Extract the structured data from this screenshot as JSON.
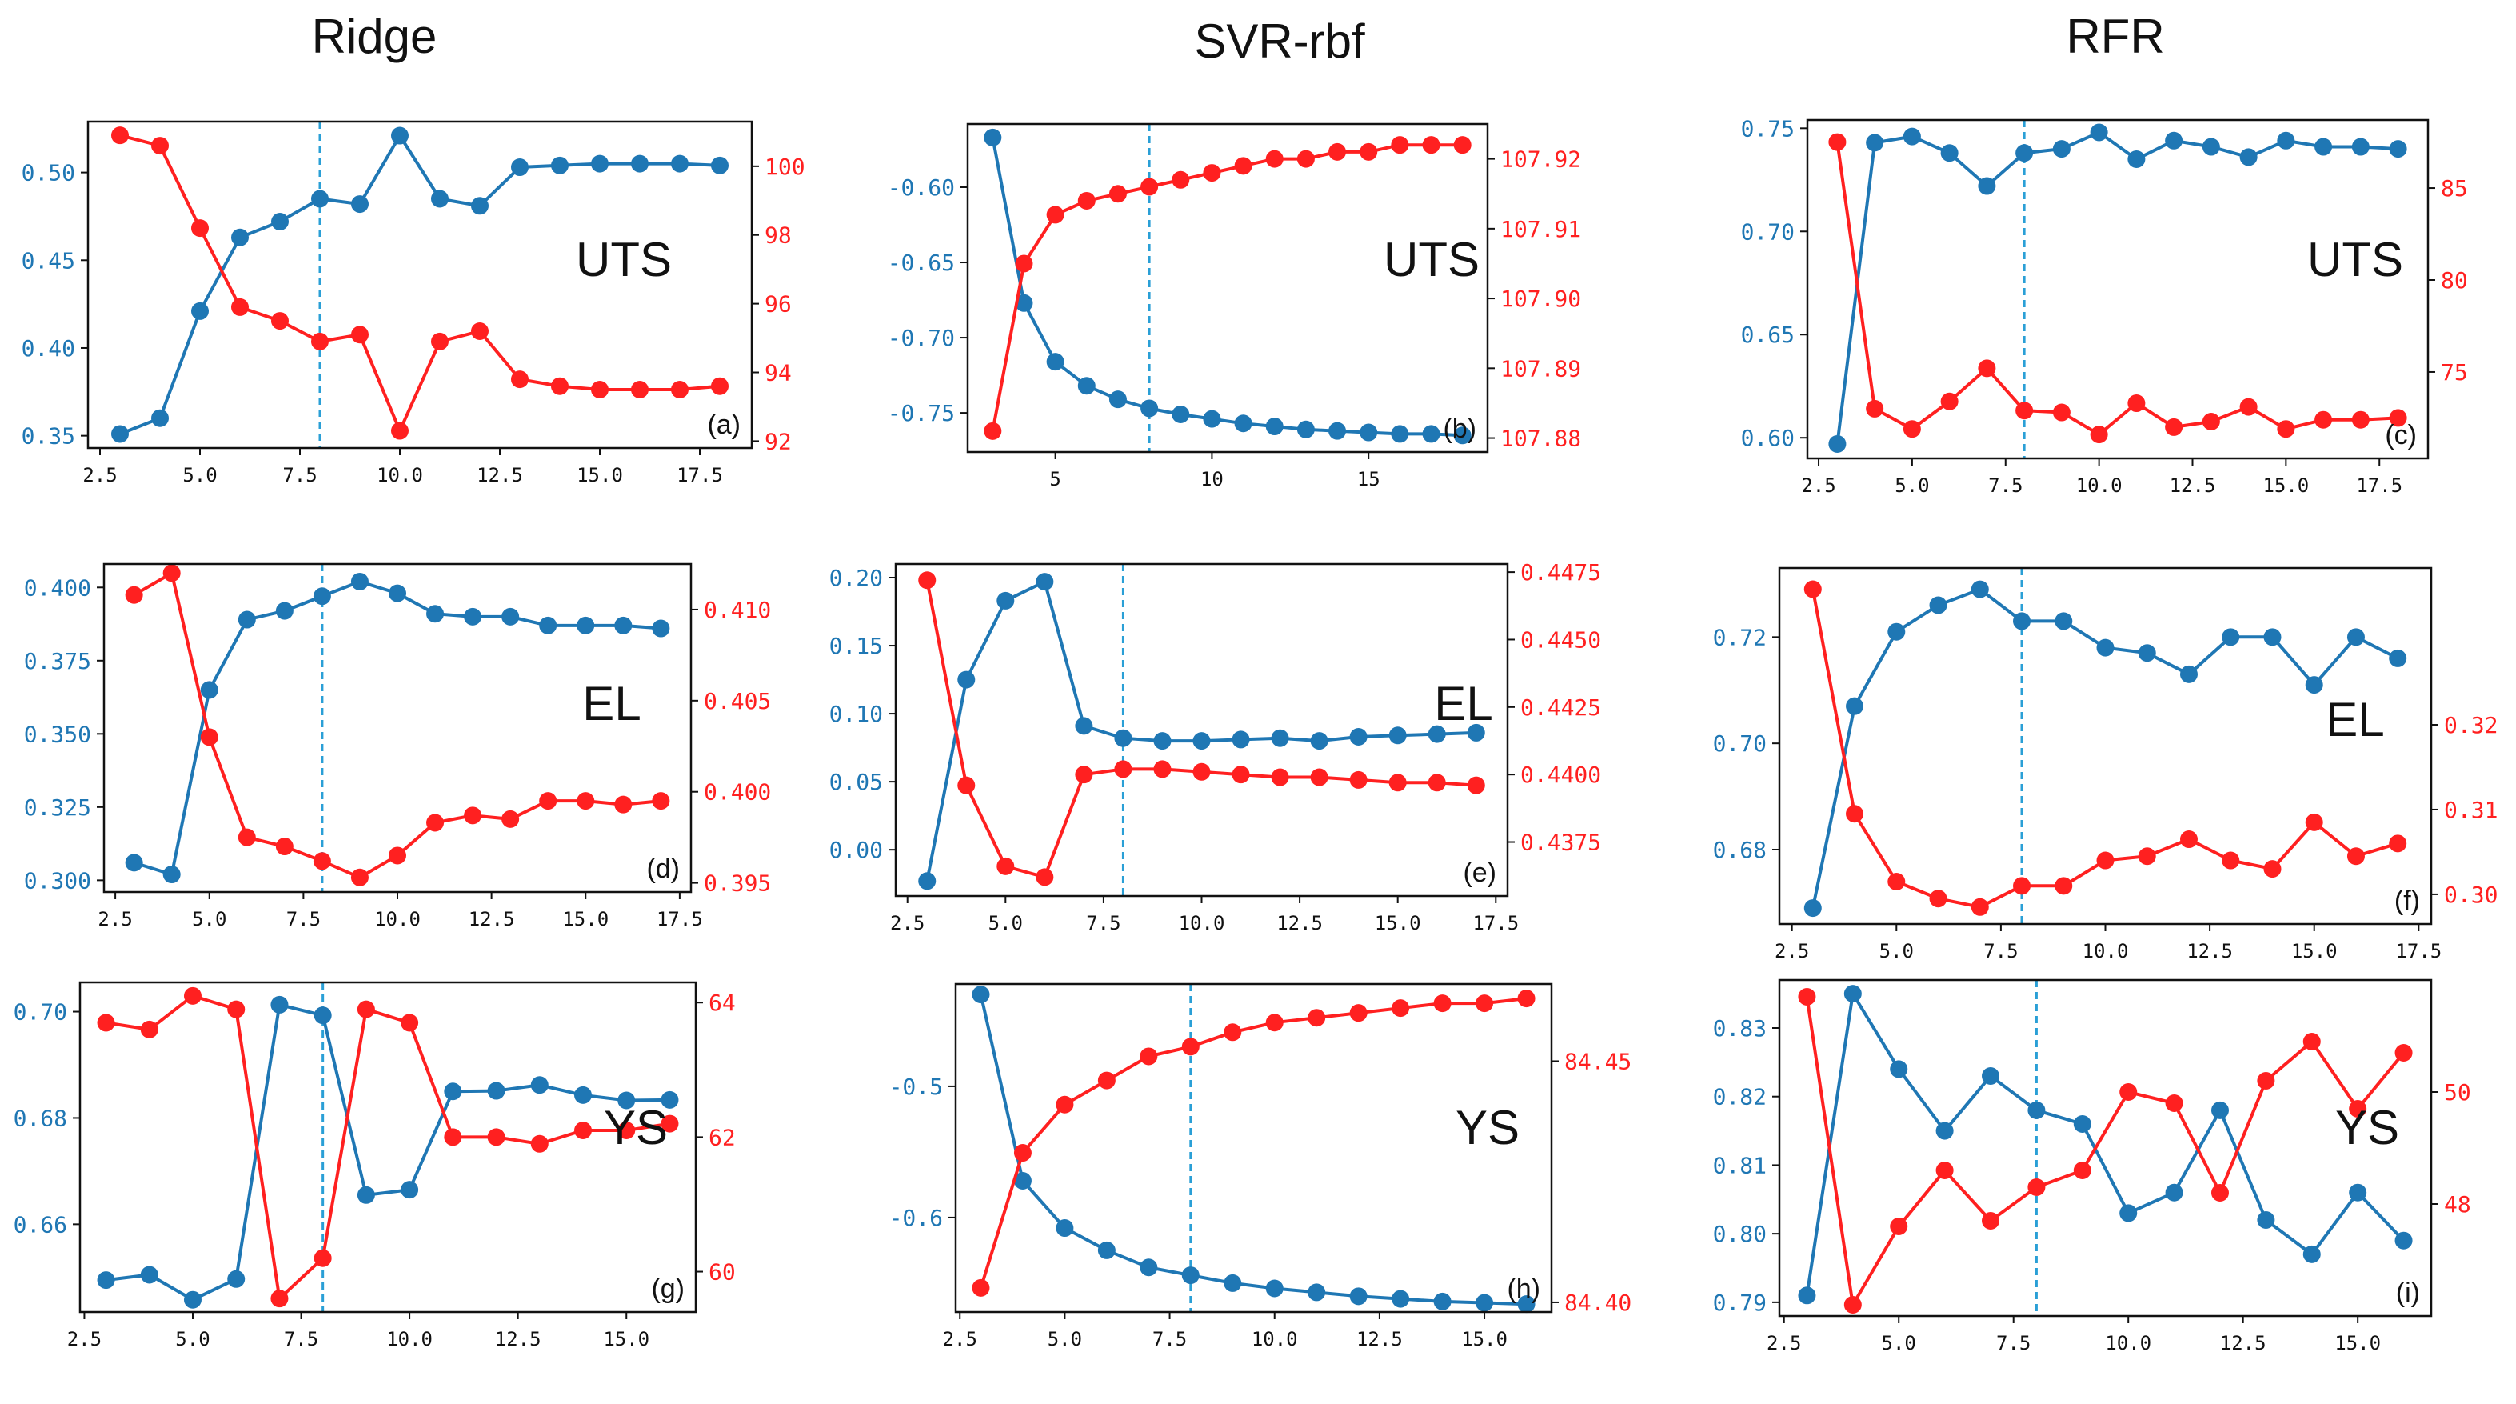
{
  "colors": {
    "blue": "#1f77b4",
    "red": "#ff2020",
    "vline": "#2a9fd6",
    "axis": "#111111"
  },
  "column_titles": [
    "Ridge",
    "SVR-rbf",
    "RFR"
  ],
  "chart_data": [
    {
      "id": "a",
      "type": "line",
      "column": "Ridge",
      "annotation": "UTS",
      "panel_label": "(a)",
      "vline_x": 8,
      "x": [
        3,
        4,
        5,
        6,
        7,
        8,
        9,
        10,
        11,
        12,
        13,
        14,
        15,
        16,
        17,
        18
      ],
      "xlim": [
        2.2,
        18.8
      ],
      "xticks": [
        2.5,
        5,
        7.5,
        10,
        12.5,
        15,
        17.5
      ],
      "xtick_labels": [
        "2.5",
        "5.0",
        "7.5",
        "10.0",
        "12.5",
        "15.0",
        "17.5"
      ],
      "left": {
        "values": [
          0.351,
          0.36,
          0.421,
          0.463,
          0.472,
          0.485,
          0.482,
          0.521,
          0.485,
          0.481,
          0.503,
          0.504,
          0.505,
          0.505,
          0.505,
          0.504
        ],
        "ylim": [
          0.343,
          0.529
        ],
        "ticks": [
          0.35,
          0.4,
          0.45,
          0.5
        ],
        "tick_labels": [
          "0.35",
          "0.40",
          "0.45",
          "0.50"
        ]
      },
      "right": {
        "values": [
          100.9,
          100.6,
          98.2,
          95.9,
          95.5,
          94.9,
          95.1,
          92.3,
          94.9,
          95.2,
          93.8,
          93.6,
          93.5,
          93.5,
          93.5,
          93.6
        ],
        "ylim": [
          91.8,
          101.3
        ],
        "ticks": [
          92,
          94,
          96,
          98,
          100
        ],
        "tick_labels": [
          "92",
          "94",
          "96",
          "98",
          "100"
        ]
      }
    },
    {
      "id": "b",
      "type": "line",
      "column": "SVR-rbf",
      "annotation": "UTS",
      "panel_label": "(b)",
      "vline_x": 8,
      "x": [
        3,
        4,
        5,
        6,
        7,
        8,
        9,
        10,
        11,
        12,
        13,
        14,
        15,
        16,
        17,
        18
      ],
      "xlim": [
        2.2,
        18.8
      ],
      "xticks": [
        5,
        10,
        15
      ],
      "xtick_labels": [
        "5",
        "10",
        "15"
      ],
      "left": {
        "values": [
          -0.567,
          -0.677,
          -0.716,
          -0.732,
          -0.741,
          -0.747,
          -0.751,
          -0.754,
          -0.757,
          -0.759,
          -0.761,
          -0.762,
          -0.763,
          -0.764,
          -0.764,
          -0.765
        ],
        "ylim": [
          -0.776,
          -0.558
        ],
        "ticks": [
          -0.6,
          -0.65,
          -0.7,
          -0.75
        ],
        "tick_labels": [
          "-0.60",
          "-0.65",
          "-0.70",
          "-0.75"
        ]
      },
      "right": {
        "values": [
          107.881,
          107.905,
          107.912,
          107.914,
          107.915,
          107.916,
          107.917,
          107.918,
          107.919,
          107.92,
          107.92,
          107.921,
          107.921,
          107.922,
          107.922,
          107.922
        ],
        "ylim": [
          107.878,
          107.925
        ],
        "ticks": [
          107.88,
          107.89,
          107.9,
          107.91,
          107.92
        ],
        "tick_labels": [
          "107.88",
          "107.89",
          "107.90",
          "107.91",
          "107.92"
        ]
      }
    },
    {
      "id": "c",
      "type": "line",
      "column": "RFR",
      "annotation": "UTS",
      "panel_label": "(c)",
      "vline_x": 8,
      "x": [
        3,
        4,
        5,
        6,
        7,
        8,
        9,
        10,
        11,
        12,
        13,
        14,
        15,
        16,
        17,
        18
      ],
      "xlim": [
        2.2,
        18.8
      ],
      "xticks": [
        2.5,
        5,
        7.5,
        10,
        12.5,
        15,
        17.5
      ],
      "xtick_labels": [
        "2.5",
        "5.0",
        "7.5",
        "10.0",
        "12.5",
        "15.0",
        "17.5"
      ],
      "left": {
        "values": [
          0.597,
          0.743,
          0.746,
          0.738,
          0.722,
          0.738,
          0.74,
          0.748,
          0.735,
          0.744,
          0.741,
          0.736,
          0.744,
          0.741,
          0.741,
          0.74
        ],
        "ylim": [
          0.59,
          0.754
        ],
        "ticks": [
          0.6,
          0.65,
          0.7,
          0.75
        ],
        "tick_labels": [
          "0.60",
          "0.65",
          "0.70",
          "0.75"
        ]
      },
      "right": {
        "values": [
          87.5,
          73.0,
          71.9,
          73.4,
          75.2,
          72.9,
          72.8,
          71.6,
          73.3,
          72.0,
          72.3,
          73.1,
          71.9,
          72.4,
          72.4,
          72.5
        ],
        "ylim": [
          70.3,
          88.7
        ],
        "ticks": [
          75,
          80,
          85
        ],
        "tick_labels": [
          "75",
          "80",
          "85"
        ]
      }
    },
    {
      "id": "d",
      "type": "line",
      "column": "Ridge",
      "annotation": "EL",
      "panel_label": "(d)",
      "vline_x": 8,
      "x": [
        3,
        4,
        5,
        6,
        7,
        8,
        9,
        10,
        11,
        12,
        13,
        14,
        15,
        16,
        17
      ],
      "xlim": [
        2.2,
        17.8
      ],
      "xticks": [
        2.5,
        5,
        7.5,
        10,
        12.5,
        15,
        17.5
      ],
      "xtick_labels": [
        "2.5",
        "5.0",
        "7.5",
        "10.0",
        "12.5",
        "15.0",
        "17.5"
      ],
      "left": {
        "values": [
          0.306,
          0.302,
          0.365,
          0.389,
          0.392,
          0.397,
          0.402,
          0.398,
          0.391,
          0.39,
          0.39,
          0.387,
          0.387,
          0.387,
          0.386
        ],
        "ylim": [
          0.296,
          0.408
        ],
        "ticks": [
          0.3,
          0.325,
          0.35,
          0.375,
          0.4
        ],
        "tick_labels": [
          "0.300",
          "0.325",
          "0.350",
          "0.375",
          "0.400"
        ]
      },
      "right": {
        "values": [
          0.4108,
          0.412,
          0.403,
          0.3975,
          0.397,
          0.3962,
          0.3953,
          0.3965,
          0.3983,
          0.3987,
          0.3985,
          0.3995,
          0.3995,
          0.3993,
          0.3995
        ],
        "ylim": [
          0.3945,
          0.4125
        ],
        "ticks": [
          0.395,
          0.4,
          0.405,
          0.41
        ],
        "tick_labels": [
          "0.395",
          "0.400",
          "0.405",
          "0.410"
        ]
      }
    },
    {
      "id": "e",
      "type": "line",
      "column": "SVR-rbf",
      "annotation": "EL",
      "panel_label": "(e)",
      "vline_x": 8,
      "x": [
        3,
        4,
        5,
        6,
        7,
        8,
        9,
        10,
        11,
        12,
        13,
        14,
        15,
        16,
        17
      ],
      "xlim": [
        2.2,
        17.8
      ],
      "xticks": [
        2.5,
        5,
        7.5,
        10,
        12.5,
        15,
        17.5
      ],
      "xtick_labels": [
        "2.5",
        "5.0",
        "7.5",
        "10.0",
        "12.5",
        "15.0",
        "17.5"
      ],
      "left": {
        "values": [
          -0.023,
          0.125,
          0.183,
          0.197,
          0.091,
          0.082,
          0.08,
          0.08,
          0.081,
          0.082,
          0.08,
          0.083,
          0.084,
          0.085,
          0.086
        ],
        "ylim": [
          -0.034,
          0.21
        ],
        "ticks": [
          0.0,
          0.05,
          0.1,
          0.15,
          0.2
        ],
        "tick_labels": [
          "0.00",
          "0.05",
          "0.10",
          "0.15",
          "0.20"
        ]
      },
      "right": {
        "values": [
          0.4472,
          0.4396,
          0.4366,
          0.4362,
          0.44,
          0.4402,
          0.4402,
          0.4401,
          0.44,
          0.4399,
          0.4399,
          0.4398,
          0.4397,
          0.4397,
          0.4396
        ],
        "ylim": [
          0.4355,
          0.4478
        ],
        "ticks": [
          0.4375,
          0.44,
          0.4425,
          0.445,
          0.4475
        ],
        "tick_labels": [
          "0.4375",
          "0.4400",
          "0.4425",
          "0.4450",
          "0.4475"
        ]
      }
    },
    {
      "id": "f",
      "type": "line",
      "column": "RFR",
      "annotation": "EL",
      "panel_label": "(f)",
      "vline_x": 8,
      "x": [
        3,
        4,
        5,
        6,
        7,
        8,
        9,
        10,
        11,
        12,
        13,
        14,
        15,
        16,
        17
      ],
      "xlim": [
        2.2,
        17.8
      ],
      "xticks": [
        2.5,
        5,
        7.5,
        10,
        12.5,
        15,
        17.5
      ],
      "xtick_labels": [
        "2.5",
        "5.0",
        "7.5",
        "10.0",
        "12.5",
        "15.0",
        "17.5"
      ],
      "left": {
        "values": [
          0.669,
          0.707,
          0.721,
          0.726,
          0.729,
          0.723,
          0.723,
          0.718,
          0.717,
          0.713,
          0.72,
          0.72,
          0.711,
          0.72,
          0.716
        ],
        "ylim": [
          0.666,
          0.733
        ],
        "ticks": [
          0.68,
          0.7,
          0.72
        ],
        "tick_labels": [
          "0.68",
          "0.70",
          "0.72"
        ]
      },
      "right": {
        "values": [
          0.336,
          0.3095,
          0.3015,
          0.2995,
          0.2985,
          0.301,
          0.301,
          0.304,
          0.3045,
          0.3065,
          0.304,
          0.303,
          0.3085,
          0.3045,
          0.306
        ],
        "ylim": [
          0.2965,
          0.3385
        ],
        "ticks": [
          0.3,
          0.31,
          0.32
        ],
        "tick_labels": [
          "0.30",
          "0.31",
          "0.32"
        ]
      }
    },
    {
      "id": "g",
      "type": "line",
      "column": "Ridge",
      "annotation": "YS",
      "panel_label": "(g)",
      "vline_x": 8,
      "x": [
        3,
        4,
        5,
        6,
        7,
        8,
        9,
        10,
        11,
        12,
        13,
        14,
        15,
        16
      ],
      "xlim": [
        2.4,
        16.6
      ],
      "xticks": [
        2.5,
        5,
        7.5,
        10,
        12.5,
        15
      ],
      "xtick_labels": [
        "2.5",
        "5.0",
        "7.5",
        "10.0",
        "12.5",
        "15.0"
      ],
      "left": {
        "values": [
          0.6495,
          0.6505,
          0.6458,
          0.6497,
          0.7013,
          0.6993,
          0.6655,
          0.6665,
          0.685,
          0.6851,
          0.6862,
          0.6843,
          0.6833,
          0.6834
        ],
        "ylim": [
          0.6435,
          0.7055
        ],
        "ticks": [
          0.66,
          0.68,
          0.7
        ],
        "tick_labels": [
          "0.66",
          "0.68",
          "0.70"
        ]
      },
      "right": {
        "values": [
          63.7,
          63.6,
          64.1,
          63.9,
          59.6,
          60.2,
          63.9,
          63.7,
          62.0,
          62.0,
          61.9,
          62.1,
          62.1,
          62.2
        ],
        "ylim": [
          59.4,
          64.3
        ],
        "ticks": [
          60,
          62,
          64
        ],
        "tick_labels": [
          "60",
          "62",
          "64"
        ]
      }
    },
    {
      "id": "h",
      "type": "line",
      "column": "SVR-rbf",
      "annotation": "YS",
      "panel_label": "(h)",
      "vline_x": 8,
      "x": [
        3,
        4,
        5,
        6,
        7,
        8,
        9,
        10,
        11,
        12,
        13,
        14,
        15,
        16
      ],
      "xlim": [
        2.4,
        16.6
      ],
      "xticks": [
        2.5,
        5,
        7.5,
        10,
        12.5,
        15
      ],
      "xtick_labels": [
        "2.5",
        "5.0",
        "7.5",
        "10.0",
        "12.5",
        "15.0"
      ],
      "left": {
        "values": [
          -0.43,
          -0.572,
          -0.608,
          -0.625,
          -0.638,
          -0.644,
          -0.65,
          -0.654,
          -0.657,
          -0.66,
          -0.662,
          -0.664,
          -0.665,
          -0.666
        ],
        "ylim": [
          -0.672,
          -0.422
        ],
        "ticks": [
          -0.5,
          -0.6
        ],
        "tick_labels": [
          "-0.5",
          "-0.6"
        ]
      },
      "right": {
        "values": [
          84.403,
          84.431,
          84.441,
          84.446,
          84.451,
          84.453,
          84.456,
          84.458,
          84.459,
          84.46,
          84.461,
          84.462,
          84.462,
          84.463
        ],
        "ylim": [
          84.398,
          84.466
        ],
        "ticks": [
          84.4,
          84.45
        ],
        "tick_labels": [
          "84.40",
          "84.45"
        ]
      }
    },
    {
      "id": "i",
      "type": "line",
      "column": "RFR",
      "annotation": "YS",
      "panel_label": "(i)",
      "vline_x": 8,
      "x": [
        3,
        4,
        5,
        6,
        7,
        8,
        9,
        10,
        11,
        12,
        13,
        14,
        15,
        16
      ],
      "xlim": [
        2.4,
        16.6
      ],
      "xticks": [
        2.5,
        5,
        7.5,
        10,
        12.5,
        15
      ],
      "xtick_labels": [
        "2.5",
        "5.0",
        "7.5",
        "10.0",
        "12.5",
        "15.0"
      ],
      "left": {
        "values": [
          0.791,
          0.835,
          0.824,
          0.815,
          0.823,
          0.818,
          0.816,
          0.803,
          0.806,
          0.818,
          0.802,
          0.797,
          0.806,
          0.799
        ],
        "ylim": [
          0.788,
          0.837
        ],
        "ticks": [
          0.79,
          0.8,
          0.81,
          0.82,
          0.83
        ],
        "tick_labels": [
          "0.79",
          "0.80",
          "0.81",
          "0.82",
          "0.83"
        ]
      },
      "right": {
        "values": [
          51.7,
          46.2,
          47.6,
          48.6,
          47.7,
          48.3,
          48.6,
          50.0,
          49.8,
          48.2,
          50.2,
          50.9,
          49.7,
          50.7
        ],
        "ylim": [
          46.0,
          52.0
        ],
        "ticks": [
          48,
          50
        ],
        "tick_labels": [
          "48",
          "50"
        ]
      }
    }
  ]
}
